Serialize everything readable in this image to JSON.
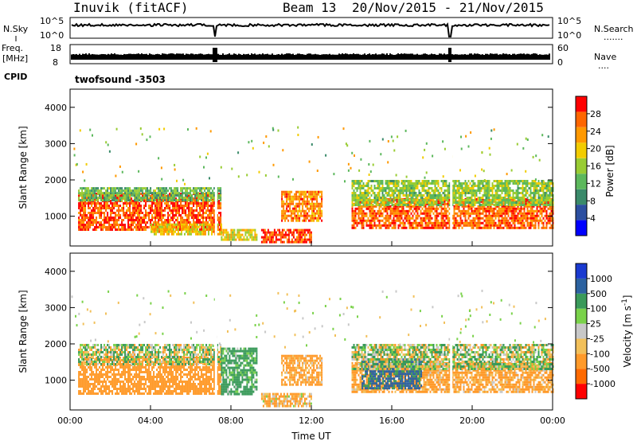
{
  "header": {
    "station": "Inuvik (fitACF)",
    "beam": "Beam 13",
    "date_range": "20/Nov/2015 - 21/Nov/2015"
  },
  "nsky_panel": {
    "left_label": "N.Sky",
    "left_ticks": [
      "10^5",
      "10^0"
    ],
    "right_label": "N.Search",
    "right_dots": ".......",
    "right_ticks": [
      "10^5",
      "10^0"
    ]
  },
  "freq_panel": {
    "left_label_1": "Freq.",
    "left_label_2": "[MHz]",
    "left_ticks": [
      "18",
      "8"
    ],
    "right_label": "Nave",
    "right_dots": "....",
    "right_ticks": [
      "60",
      "0"
    ]
  },
  "cpid": {
    "label": "CPID",
    "program": "twofsound -3503"
  },
  "colors": {
    "power_scale": [
      "#0000ff",
      "#2c4fa0",
      "#3a8a6a",
      "#5cb85c",
      "#99cc33",
      "#f2cc00",
      "#ff9900",
      "#ff6600",
      "#ff0000"
    ],
    "velocity_scale": [
      "#ff0000",
      "#ff6a00",
      "#ff9a2a",
      "#f2c05a",
      "#c8c8c8",
      "#7ad24a",
      "#3a9a5a",
      "#2c62a0",
      "#1a3ad0"
    ],
    "gap": "#ffffff"
  },
  "chart_data": [
    {
      "type": "heatmap",
      "name": "power",
      "ylabel": "Slant Range [km]",
      "yticks": [
        "1000",
        "2000",
        "3000",
        "4000"
      ],
      "ylim": [
        180,
        4500
      ],
      "xlim": [
        "00:00",
        "24:00"
      ],
      "colorbar_label": "Power [dB]",
      "colorbar_ticks": [
        "4",
        "8",
        "12",
        "16",
        "20",
        "24",
        "28"
      ],
      "colorbar_range": [
        0,
        30
      ],
      "regions": [
        {
          "t0": 0.4,
          "t1": 7.5,
          "r0": 650,
          "r1": 1650,
          "value": 27
        },
        {
          "t0": 0.4,
          "t1": 7.5,
          "r0": 1450,
          "r1": 1800,
          "value": 12
        },
        {
          "t0": 4.0,
          "t1": 7.5,
          "r0": 500,
          "r1": 800,
          "value": 20
        },
        {
          "t0": 7.5,
          "t1": 9.3,
          "r0": 350,
          "r1": 650,
          "value": 18
        },
        {
          "t0": 9.5,
          "t1": 12.0,
          "r0": 300,
          "r1": 650,
          "value": 28
        },
        {
          "t0": 10.5,
          "t1": 12.5,
          "r0": 900,
          "r1": 1700,
          "value": 24
        },
        {
          "t0": 14.0,
          "t1": 24.0,
          "r0": 700,
          "r1": 1500,
          "value": 26
        },
        {
          "t0": 14.0,
          "t1": 24.0,
          "r0": 1300,
          "r1": 2000,
          "value": 14
        }
      ]
    },
    {
      "type": "heatmap",
      "name": "velocity",
      "ylabel": "Slant Range [km]",
      "yticks": [
        "1000",
        "2000",
        "3000",
        "4000"
      ],
      "ylim": [
        180,
        4500
      ],
      "xlim": [
        "00:00",
        "24:00"
      ],
      "xticks": [
        "00:00",
        "04:00",
        "08:00",
        "12:00",
        "16:00",
        "20:00",
        "00:00"
      ],
      "xlabel": "Time UT",
      "colorbar_label": "Velocity [m s^-1]",
      "colorbar_ticks": [
        "-1000",
        "-500",
        "-100",
        "-25",
        "25",
        "100",
        "500",
        "1000"
      ],
      "regions": [
        {
          "t0": 0.4,
          "t1": 7.5,
          "r0": 650,
          "r1": 1650,
          "value": -300
        },
        {
          "t0": 0.4,
          "t1": 7.5,
          "r0": 1450,
          "r1": 2000,
          "value": 30
        },
        {
          "t0": 7.5,
          "t1": 9.3,
          "r0": 600,
          "r1": 1900,
          "value": 200
        },
        {
          "t0": 9.5,
          "t1": 12.0,
          "r0": 300,
          "r1": 650,
          "value": -150
        },
        {
          "t0": 10.5,
          "t1": 12.5,
          "r0": 900,
          "r1": 1700,
          "value": -200
        },
        {
          "t0": 14.0,
          "t1": 24.0,
          "r0": 700,
          "r1": 1500,
          "value": -200
        },
        {
          "t0": 14.5,
          "t1": 17.5,
          "r0": 800,
          "r1": 1600,
          "value": 600
        },
        {
          "t0": 14.0,
          "t1": 24.0,
          "r0": 1300,
          "r1": 2000,
          "value": 40
        }
      ]
    }
  ]
}
